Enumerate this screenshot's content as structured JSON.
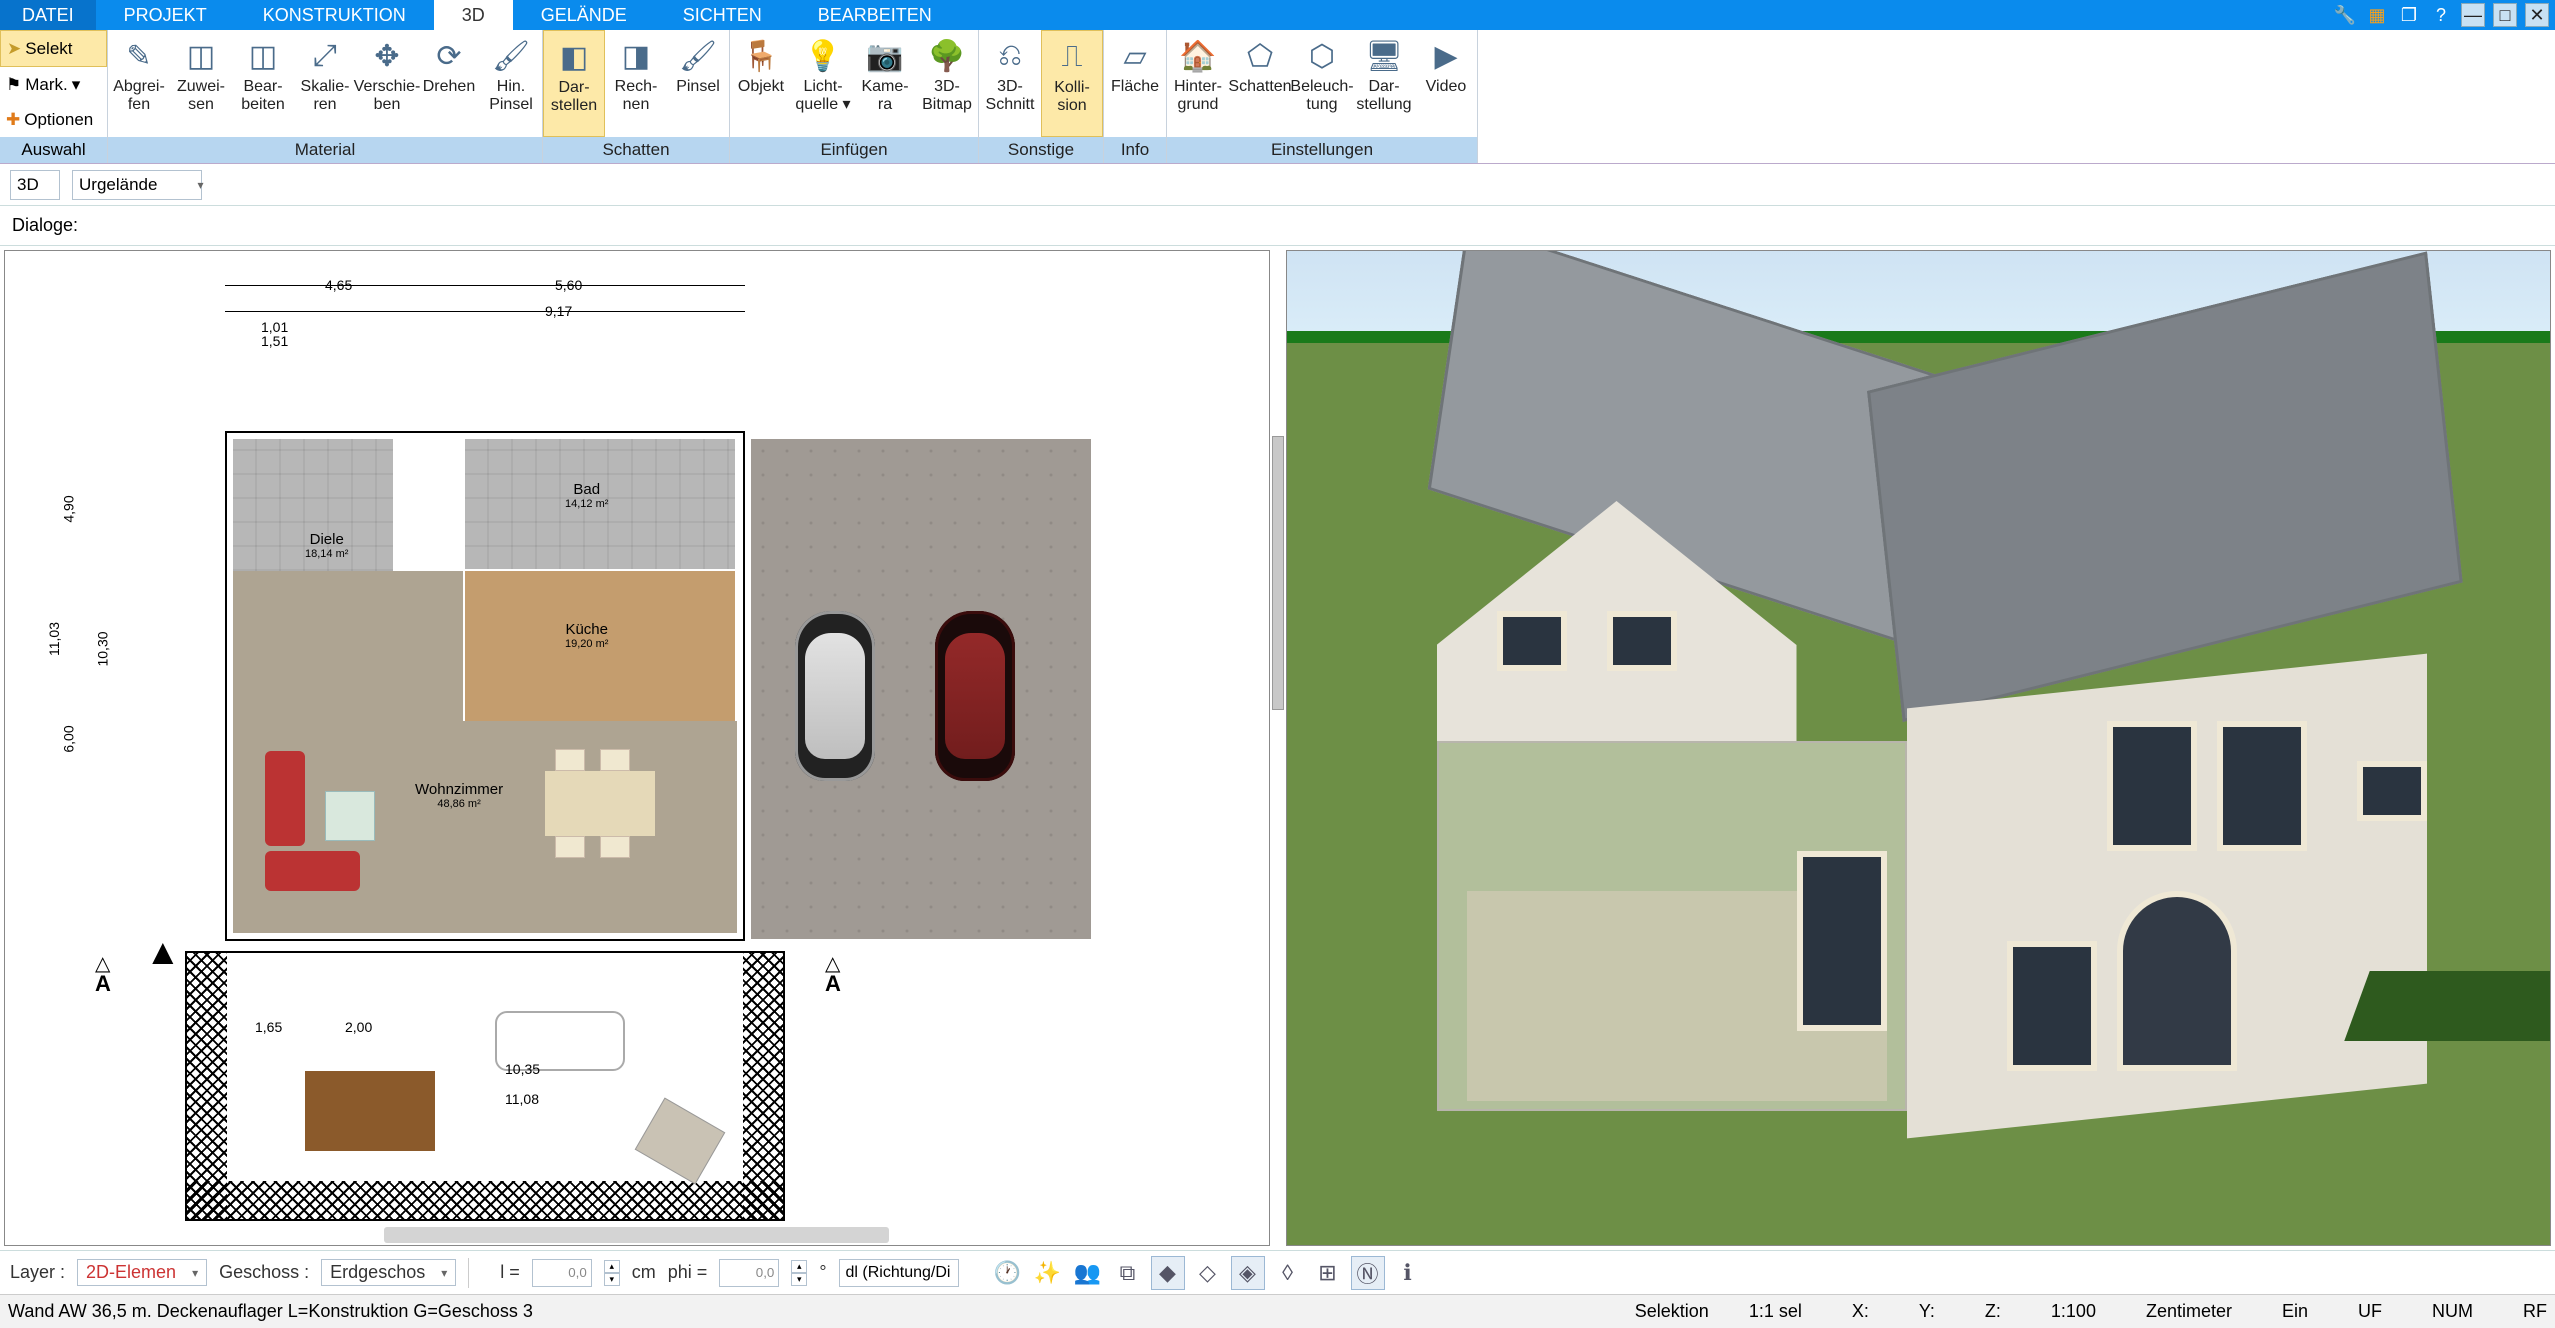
{
  "menu": {
    "items": [
      "DATEI",
      "PROJEKT",
      "KONSTRUKTION",
      "3D",
      "GELÄNDE",
      "SICHTEN",
      "BEARBEITEN"
    ],
    "active_index": 3
  },
  "ribbon": {
    "left": {
      "selekt": "Selekt",
      "mark": "Mark.",
      "optionen": "Optionen",
      "label": "Auswahl"
    },
    "groups": [
      {
        "label": "Material",
        "buttons": [
          {
            "l1": "Abgrei-",
            "l2": "fen",
            "icon": "✎"
          },
          {
            "l1": "Zuwei-",
            "l2": "sen",
            "icon": "◫"
          },
          {
            "l1": "Bear-",
            "l2": "beiten",
            "icon": "◫"
          },
          {
            "l1": "Skalie-",
            "l2": "ren",
            "icon": "⤢"
          },
          {
            "l1": "Verschie-",
            "l2": "ben",
            "icon": "✥"
          },
          {
            "l1": "Drehen",
            "l2": "",
            "icon": "⟳"
          },
          {
            "l1": "Hin.",
            "l2": "Pinsel",
            "icon": "🖌"
          }
        ]
      },
      {
        "label": "Schatten",
        "buttons": [
          {
            "l1": "Dar-",
            "l2": "stellen",
            "icon": "◧",
            "active": true
          },
          {
            "l1": "Rech-",
            "l2": "nen",
            "icon": "◨"
          },
          {
            "l1": "Pinsel",
            "l2": "",
            "icon": "🖌"
          }
        ]
      },
      {
        "label": "Einfügen",
        "buttons": [
          {
            "l1": "Objekt",
            "l2": "",
            "icon": "🪑"
          },
          {
            "l1": "Licht-",
            "l2": "quelle ▾",
            "icon": "💡"
          },
          {
            "l1": "Kame-",
            "l2": "ra",
            "icon": "📷"
          },
          {
            "l1": "3D-",
            "l2": "Bitmap",
            "icon": "🌳"
          }
        ]
      },
      {
        "label": "Sonstige",
        "buttons": [
          {
            "l1": "3D-",
            "l2": "Schnitt",
            "icon": "⎌"
          },
          {
            "l1": "Kolli-",
            "l2": "sion",
            "icon": "⎍",
            "active": true
          }
        ]
      },
      {
        "label": "Info",
        "buttons": [
          {
            "l1": "Fläche",
            "l2": "",
            "icon": "▱"
          }
        ]
      },
      {
        "label": "Einstellungen",
        "buttons": [
          {
            "l1": "Hinter-",
            "l2": "grund",
            "icon": "🏠"
          },
          {
            "l1": "Schatten",
            "l2": "",
            "icon": "⬠"
          },
          {
            "l1": "Beleuch-",
            "l2": "tung",
            "icon": "⬡"
          },
          {
            "l1": "Dar-",
            "l2": "stellung",
            "icon": "🖥"
          },
          {
            "l1": "Video",
            "l2": "",
            "icon": "▶"
          }
        ]
      }
    ]
  },
  "subbar": {
    "mode": "3D",
    "terrain": "Urgelände"
  },
  "dialoge_label": "Dialoge:",
  "plan": {
    "dims": {
      "d1": "4,65",
      "d2": "5,60",
      "d3": "9,17",
      "d4": "11,03",
      "d5": "6,00",
      "d6": "4,90",
      "d7": "10,30",
      "d8": "10,35",
      "d9": "11,08",
      "d10": "2,00",
      "d11": "1,65",
      "d12": "1,01",
      "d13": "1,51"
    },
    "rooms": {
      "diele": {
        "name": "Diele",
        "area": "18,14 m²"
      },
      "bad": {
        "name": "Bad",
        "area": "14,12 m²"
      },
      "kueche": {
        "name": "Küche",
        "area": "19,20 m²"
      },
      "wohn": {
        "name": "Wohnzimmer",
        "area": "48,86 m²"
      }
    },
    "section": "A"
  },
  "bottom": {
    "layer_lbl": "Layer :",
    "layer_val": "2D-Elemen",
    "geschoss_lbl": "Geschoss :",
    "geschoss_val": "Erdgeschos",
    "l_lbl": "l =",
    "l_val": "0,0",
    "l_unit": "cm",
    "phi_lbl": "phi =",
    "phi_val": "0,0",
    "phi_unit": "°",
    "dir": "dl (Richtung/Di"
  },
  "status": {
    "left": "Wand AW 36,5 m. Deckenauflager L=Konstruktion G=Geschoss 3",
    "selektion": "Selektion",
    "sel": "1:1 sel",
    "x": "X:",
    "y": "Y:",
    "z": "Z:",
    "scale": "1:100",
    "unit": "Zentimeter",
    "ein": "Ein",
    "uf": "UF",
    "num": "NUM",
    "rf": "RF"
  }
}
